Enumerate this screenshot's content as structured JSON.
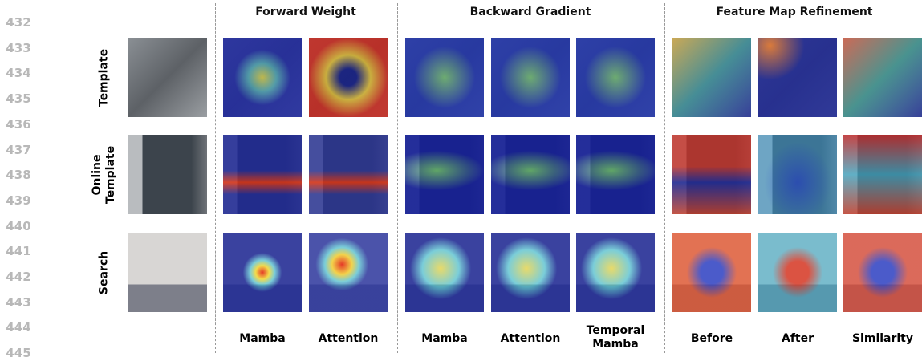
{
  "line_numbers": [
    "432",
    "433",
    "434",
    "435",
    "436",
    "437",
    "438",
    "439",
    "440",
    "441",
    "442",
    "443",
    "444",
    "445"
  ],
  "sections": [
    {
      "title": "Forward Weight"
    },
    {
      "title": "Backward Gradient"
    },
    {
      "title": "Feature Map Refinement"
    }
  ],
  "rows": [
    "Template",
    "Online Template",
    "Search"
  ],
  "columns": [
    "Mamba",
    "Attention",
    "Mamba",
    "Attention",
    "Temporal Mamba",
    "Before",
    "After",
    "Similarity"
  ]
}
